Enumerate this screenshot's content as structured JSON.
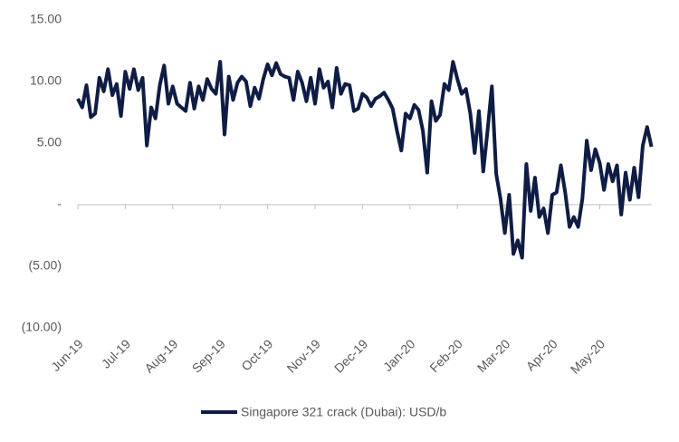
{
  "chart_data": {
    "type": "line",
    "categories": [
      "Jun-19",
      null,
      null,
      null,
      null,
      null,
      null,
      null,
      null,
      null,
      null,
      "Jul-19",
      null,
      null,
      null,
      null,
      null,
      null,
      null,
      null,
      null,
      null,
      "Aug-19",
      null,
      null,
      null,
      null,
      null,
      null,
      null,
      null,
      null,
      null,
      "Sep-19",
      null,
      null,
      null,
      null,
      null,
      null,
      null,
      null,
      null,
      null,
      "Oct-19",
      null,
      null,
      null,
      null,
      null,
      null,
      null,
      null,
      null,
      null,
      "Nov-19",
      null,
      null,
      null,
      null,
      null,
      null,
      null,
      null,
      null,
      null,
      "Dec-19",
      null,
      null,
      null,
      null,
      null,
      null,
      null,
      null,
      null,
      null,
      "Jan-20",
      null,
      null,
      null,
      null,
      null,
      null,
      null,
      null,
      null,
      null,
      "Feb-20",
      null,
      null,
      null,
      null,
      null,
      null,
      null,
      null,
      null,
      null,
      "Mar-20",
      null,
      null,
      null,
      null,
      null,
      null,
      null,
      null,
      null,
      null,
      "Apr-20",
      null,
      null,
      null,
      null,
      null,
      null,
      null,
      null,
      null,
      null,
      "May-20",
      null,
      null,
      null,
      null,
      null,
      null,
      null,
      null,
      null,
      null,
      null,
      null
    ],
    "series": [
      {
        "name": "Singapore 321 crack (Dubai): USD/b",
        "color": "#0f1d45",
        "values": [
          8.6,
          7.9,
          9.7,
          7.1,
          7.4,
          10.3,
          9.2,
          11.0,
          8.9,
          9.8,
          7.2,
          10.8,
          9.4,
          11.0,
          9.3,
          10.3,
          4.8,
          7.9,
          7.0,
          9.7,
          11.3,
          8.2,
          9.6,
          8.2,
          7.9,
          7.6,
          9.9,
          7.8,
          9.6,
          8.5,
          10.2,
          9.4,
          9.0,
          11.6,
          5.7,
          10.4,
          8.5,
          9.9,
          10.4,
          10.0,
          8.0,
          9.5,
          8.6,
          10.2,
          11.4,
          10.5,
          11.5,
          10.6,
          10.4,
          10.3,
          8.5,
          10.8,
          9.9,
          8.4,
          10.3,
          8.2,
          11.0,
          9.5,
          10.0,
          7.9,
          11.1,
          9.0,
          9.8,
          9.7,
          7.6,
          7.8,
          9.0,
          8.7,
          8.0,
          8.6,
          8.8,
          9.1,
          8.5,
          7.8,
          6.0,
          4.4,
          7.4,
          7.0,
          8.1,
          7.7,
          6.0,
          2.6,
          8.4,
          6.8,
          7.3,
          9.8,
          9.3,
          11.6,
          10.2,
          9.0,
          9.4,
          7.4,
          4.2,
          7.6,
          2.7,
          6.0,
          9.6,
          2.5,
          0.5,
          -2.3,
          0.8,
          -4.0,
          -2.9,
          -4.3,
          3.3,
          -0.5,
          2.2,
          -1.0,
          -0.3,
          -2.3,
          0.8,
          1.0,
          3.2,
          1.0,
          -1.8,
          -1.0,
          -1.8,
          0.5,
          5.2,
          2.8,
          4.5,
          3.4,
          1.2,
          3.3,
          1.9,
          3.2,
          -0.8,
          2.6,
          0.4,
          3.0,
          0.6,
          4.8,
          6.3,
          4.7
        ]
      }
    ],
    "ylim": [
      -10,
      15
    ],
    "yticks": [
      {
        "value": 15,
        "label": "15.00"
      },
      {
        "value": 10,
        "label": "10.00"
      },
      {
        "value": 5,
        "label": "5.00"
      },
      {
        "value": 0,
        "label": "-"
      },
      {
        "value": -5,
        "label": "(5.00)"
      },
      {
        "value": -10,
        "label": "(10.00)"
      }
    ],
    "legend": "bottom"
  }
}
